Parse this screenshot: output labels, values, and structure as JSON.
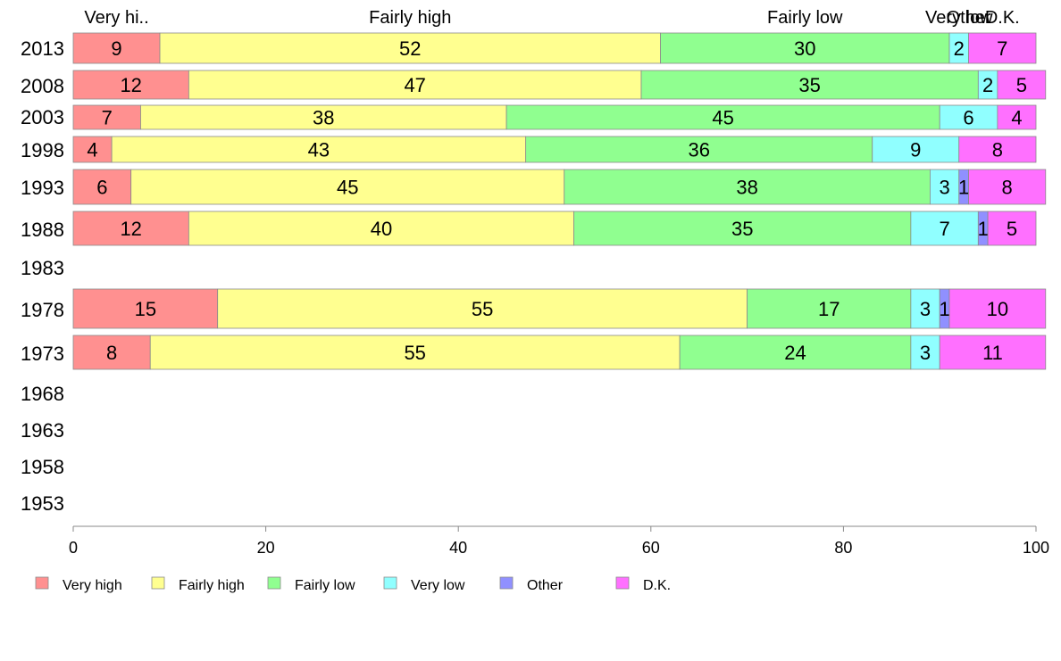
{
  "chart_data": {
    "type": "bar",
    "orientation": "horizontal",
    "stacked": true,
    "title": "",
    "xlabel": "",
    "ylabel": "",
    "xlim": [
      0,
      100
    ],
    "x_ticks": [
      "0",
      "20",
      "40",
      "60",
      "80",
      "100"
    ],
    "grid": false,
    "legend_position": "bottom",
    "categories": [
      "2013",
      "2008",
      "2003",
      "1998",
      "1993",
      "1988",
      "1983",
      "1978",
      "1973",
      "1968",
      "1963",
      "1958",
      "1953"
    ],
    "top_labels": [
      "Very hi..",
      "Fairly high",
      "Fairly low",
      "Very low",
      "Other",
      "D.K."
    ],
    "series": [
      {
        "name": "Very high",
        "color": "#ff9090",
        "values": [
          9,
          12,
          7,
          4,
          6,
          12,
          null,
          15,
          8,
          null,
          null,
          null,
          null
        ]
      },
      {
        "name": "Fairly high",
        "color": "#ffff90",
        "values": [
          52,
          47,
          38,
          43,
          45,
          40,
          null,
          55,
          55,
          null,
          null,
          null,
          null
        ]
      },
      {
        "name": "Fairly low",
        "color": "#90ff90",
        "values": [
          30,
          35,
          45,
          36,
          38,
          35,
          null,
          17,
          24,
          null,
          null,
          null,
          null
        ]
      },
      {
        "name": "Very low",
        "color": "#90ffff",
        "values": [
          2,
          2,
          6,
          9,
          3,
          7,
          null,
          3,
          3,
          null,
          null,
          null,
          null
        ]
      },
      {
        "name": "Other",
        "color": "#9090ff",
        "values": [
          0,
          0,
          0,
          0,
          1,
          1,
          null,
          1,
          0,
          null,
          null,
          null,
          null
        ]
      },
      {
        "name": "D.K.",
        "color": "#ff70ff",
        "values": [
          7,
          5,
          4,
          8,
          8,
          5,
          null,
          10,
          11,
          null,
          null,
          null,
          null
        ]
      }
    ]
  }
}
